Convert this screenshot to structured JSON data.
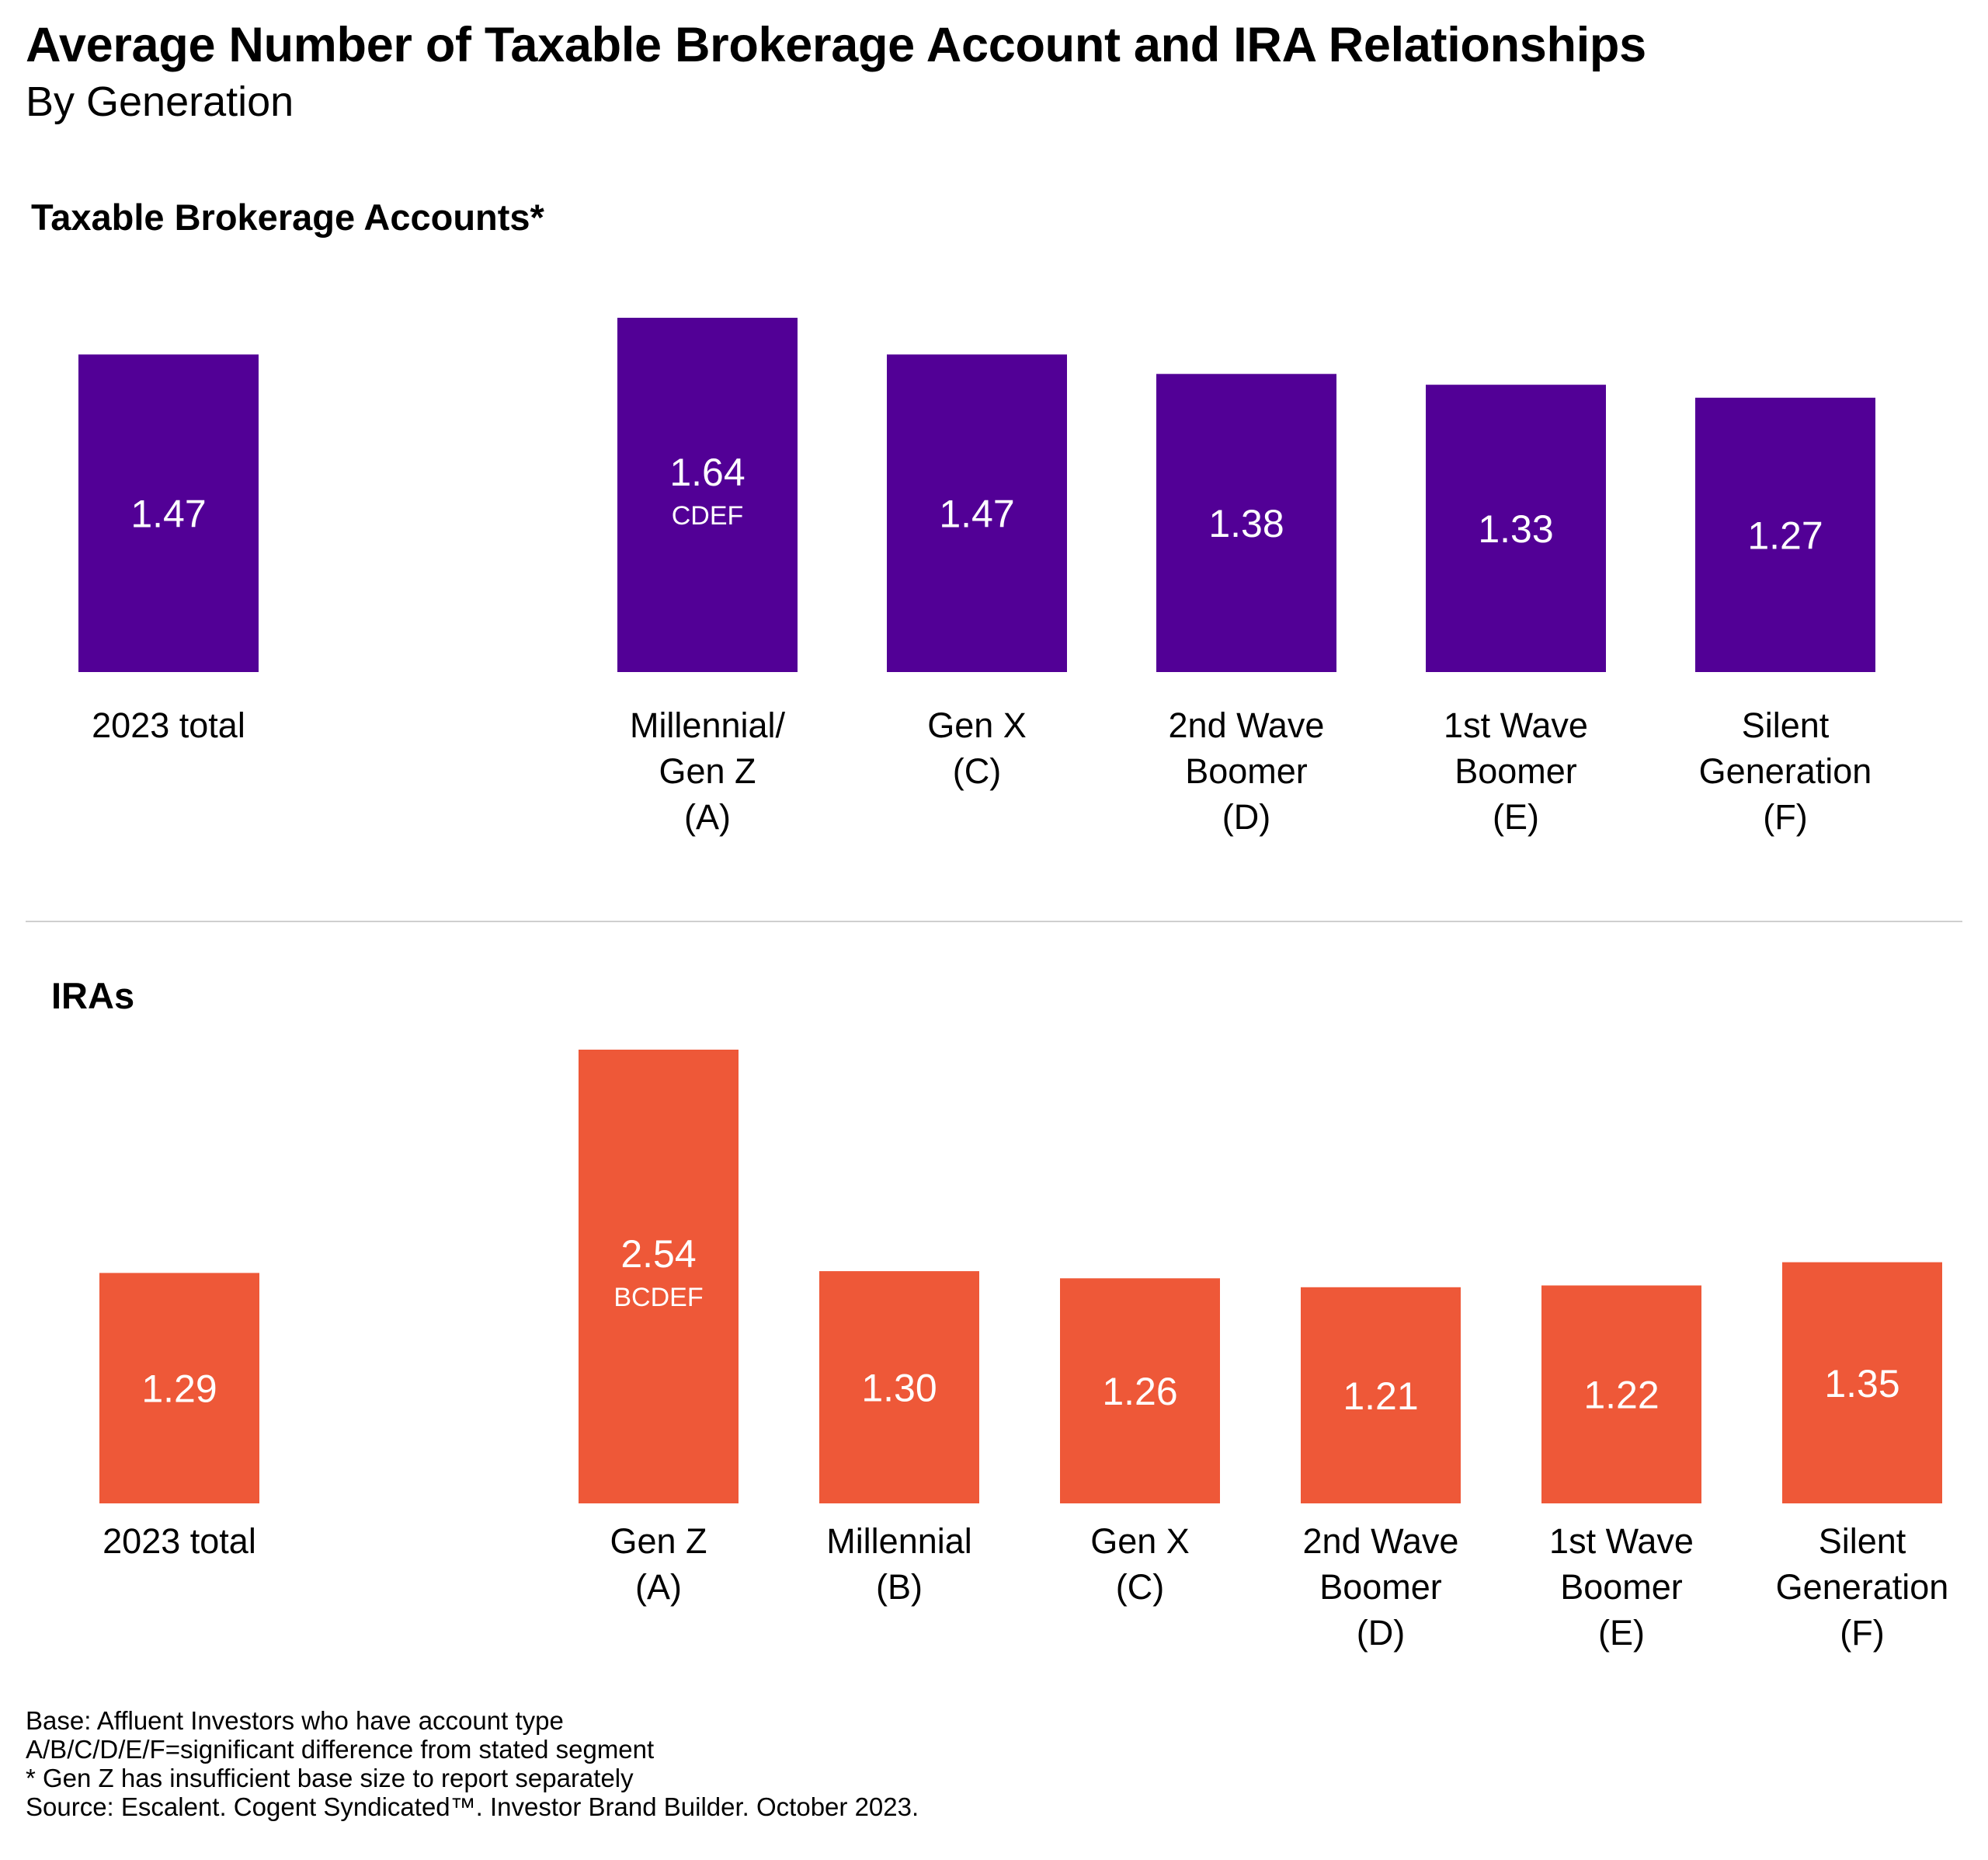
{
  "title": "Average Number of Taxable Brokerage Account and IRA Relationships",
  "subtitle": "By Generation",
  "chart_data": [
    {
      "type": "bar",
      "title": "Taxable Brokerage Accounts*",
      "categories": [
        [
          "2023 total"
        ],
        [
          "Millennial/",
          "Gen Z",
          "(A)"
        ],
        [
          "Gen X",
          "(C)"
        ],
        [
          "2nd Wave",
          "Boomer",
          "(D)"
        ],
        [
          "1st Wave",
          "Boomer",
          "(E)"
        ],
        [
          "Silent",
          "Generation",
          "(F)"
        ]
      ],
      "values": [
        1.47,
        1.64,
        1.47,
        1.38,
        1.33,
        1.27
      ],
      "value_labels": [
        "1.47",
        "1.64",
        "1.47",
        "1.38",
        "1.33",
        "1.27"
      ],
      "significance": [
        "",
        "CDEF",
        "",
        "",
        "",
        ""
      ],
      "color": "#520096",
      "ylim": [
        0,
        1.64
      ]
    },
    {
      "type": "bar",
      "title": "IRAs",
      "categories": [
        [
          "2023 total"
        ],
        [
          "Gen Z",
          "(A)"
        ],
        [
          "Millennial",
          "(B)"
        ],
        [
          "Gen X",
          "(C)"
        ],
        [
          "2nd Wave",
          "Boomer",
          "(D)"
        ],
        [
          "1st Wave",
          "Boomer",
          "(E)"
        ],
        [
          "Silent",
          "Generation",
          "(F)"
        ]
      ],
      "values": [
        1.29,
        2.54,
        1.3,
        1.26,
        1.21,
        1.22,
        1.35
      ],
      "value_labels": [
        "1.29",
        "2.54",
        "1.30",
        "1.26",
        "1.21",
        "1.22",
        "1.35"
      ],
      "significance": [
        "",
        "BCDEF",
        "",
        "",
        "",
        "",
        ""
      ],
      "color": "#EE5838",
      "ylim": [
        0,
        2.54
      ]
    }
  ],
  "footnotes": [
    "Base: Affluent Investors who have account type",
    "A/B/C/D/E/F=significant difference from stated segment",
    "* Gen Z has insufficient base size to report separately",
    "Source: Escalent. Cogent Syndicated™. Investor Brand Builder. October 2023."
  ]
}
